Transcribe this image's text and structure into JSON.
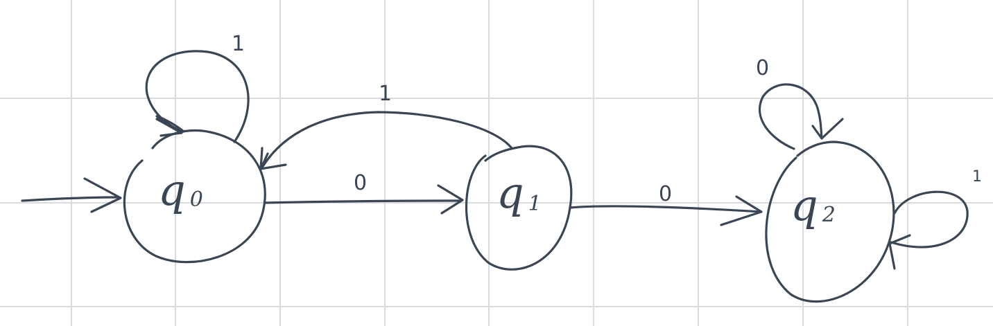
{
  "diagram": {
    "background_color": "#ffffff",
    "grid_color": "#d9dbde",
    "ink_color": "#3a4653",
    "grid": true,
    "states": [
      {
        "id": "q0",
        "name": "q",
        "subscript": "0",
        "start": true
      },
      {
        "id": "q1",
        "name": "q",
        "subscript": "1",
        "start": false
      },
      {
        "id": "q2",
        "name": "q",
        "subscript": "2",
        "start": false
      }
    ],
    "transitions": [
      {
        "from": "q0",
        "to": "q0",
        "symbol": "1"
      },
      {
        "from": "q0",
        "to": "q1",
        "symbol": "0"
      },
      {
        "from": "q1",
        "to": "q0",
        "symbol": "1"
      },
      {
        "from": "q1",
        "to": "q2",
        "symbol": "0"
      },
      {
        "from": "q2",
        "to": "q2",
        "symbol": "0"
      },
      {
        "from": "q2",
        "to": "q2",
        "symbol": "1"
      }
    ]
  }
}
